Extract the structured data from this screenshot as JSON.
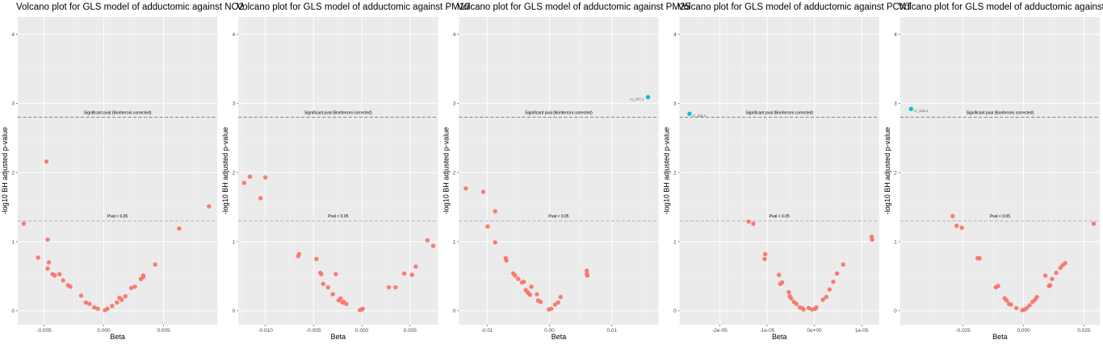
{
  "chart_data": [
    {
      "type": "scatter",
      "title": "Volcano plot for GLS model of adductomic against NO2",
      "xlabel": "Beta",
      "ylabel": "-log10 BH adjusted p-value",
      "xlim": [
        -0.0072,
        0.0095
      ],
      "ylim": [
        -0.2,
        4.25
      ],
      "xticks": [
        {
          "v": -0.005,
          "label": "-0.005"
        },
        {
          "v": 0,
          "label": "0.000"
        },
        {
          "v": 0.005,
          "label": "0.005"
        }
      ],
      "yticks": [
        {
          "v": 0,
          "label": "0"
        },
        {
          "v": 1,
          "label": "1"
        },
        {
          "v": 2,
          "label": "2"
        },
        {
          "v": 3,
          "label": "3"
        },
        {
          "v": 4,
          "label": "4"
        }
      ],
      "reference_lines": [
        {
          "y": 2.8,
          "label": "Significant pval (Bonferroni corrected)"
        },
        {
          "y": 1.3,
          "label": "Pval < 0.05"
        }
      ],
      "colors": {
        "non_significant": "#F8766D",
        "significant": "#00BFC4"
      },
      "points": [
        {
          "x": -0.0067,
          "y": 1.26
        },
        {
          "x": -0.0055,
          "y": 0.77
        },
        {
          "x": -0.0048,
          "y": 2.16
        },
        {
          "x": -0.0047,
          "y": 1.03
        },
        {
          "x": -0.0046,
          "y": 0.7
        },
        {
          "x": -0.0047,
          "y": 0.61
        },
        {
          "x": -0.0043,
          "y": 0.53
        },
        {
          "x": -0.0041,
          "y": 0.51
        },
        {
          "x": -0.0037,
          "y": 0.53
        },
        {
          "x": -0.0034,
          "y": 0.44
        },
        {
          "x": -0.003,
          "y": 0.37
        },
        {
          "x": -0.0028,
          "y": 0.35
        },
        {
          "x": -0.0019,
          "y": 0.22
        },
        {
          "x": -0.0015,
          "y": 0.12
        },
        {
          "x": -0.0012,
          "y": 0.1
        },
        {
          "x": -0.0008,
          "y": 0.05
        },
        {
          "x": -0.0005,
          "y": 0.03
        },
        {
          "x": 0.0001,
          "y": 0.01
        },
        {
          "x": 0.0003,
          "y": 0.03
        },
        {
          "x": 0.0007,
          "y": 0.07
        },
        {
          "x": 0.0011,
          "y": 0.12
        },
        {
          "x": 0.0013,
          "y": 0.19
        },
        {
          "x": 0.0015,
          "y": 0.16
        },
        {
          "x": 0.0018,
          "y": 0.21
        },
        {
          "x": 0.0023,
          "y": 0.33
        },
        {
          "x": 0.0026,
          "y": 0.35
        },
        {
          "x": 0.0031,
          "y": 0.46
        },
        {
          "x": 0.0033,
          "y": 0.51
        },
        {
          "x": 0.0033,
          "y": 0.49
        },
        {
          "x": 0.0043,
          "y": 0.67
        },
        {
          "x": 0.0063,
          "y": 1.19
        },
        {
          "x": 0.0088,
          "y": 1.51
        }
      ]
    },
    {
      "type": "scatter",
      "title": "Volcano plot for GLS model of adductomic against PM10",
      "xlabel": "Beta",
      "ylabel": "-log10 BH adjusted p-value",
      "xlim": [
        -0.0128,
        0.0079
      ],
      "ylim": [
        -0.2,
        4.25
      ],
      "xticks": [
        {
          "v": -0.01,
          "label": "-0.010"
        },
        {
          "v": -0.005,
          "label": "-0.005"
        },
        {
          "v": 0,
          "label": "0.000"
        },
        {
          "v": 0.005,
          "label": "0.005"
        }
      ],
      "yticks": [
        {
          "v": 0,
          "label": "0"
        },
        {
          "v": 1,
          "label": "1"
        },
        {
          "v": 2,
          "label": "2"
        },
        {
          "v": 3,
          "label": "3"
        },
        {
          "v": 4,
          "label": "4"
        }
      ],
      "reference_lines": [
        {
          "y": 2.8,
          "label": "Significant pval (Bonferroni corrected)"
        },
        {
          "y": 1.3,
          "label": "Pval < 0.05"
        }
      ],
      "colors": {
        "non_significant": "#F8766D",
        "significant": "#00BFC4"
      },
      "points": [
        {
          "x": -0.0122,
          "y": 1.85
        },
        {
          "x": -0.0116,
          "y": 1.94
        },
        {
          "x": -0.0105,
          "y": 1.63
        },
        {
          "x": -0.01,
          "y": 1.93
        },
        {
          "x": -0.0066,
          "y": 0.79
        },
        {
          "x": -0.0065,
          "y": 0.82
        },
        {
          "x": -0.0047,
          "y": 0.75
        },
        {
          "x": -0.0043,
          "y": 0.55
        },
        {
          "x": -0.0042,
          "y": 0.53
        },
        {
          "x": -0.004,
          "y": 0.39
        },
        {
          "x": -0.0035,
          "y": 0.34
        },
        {
          "x": -0.003,
          "y": 0.24
        },
        {
          "x": -0.0027,
          "y": 0.53
        },
        {
          "x": -0.0024,
          "y": 0.15
        },
        {
          "x": -0.0022,
          "y": 0.18
        },
        {
          "x": -0.002,
          "y": 0.12
        },
        {
          "x": -0.0019,
          "y": 0.13
        },
        {
          "x": -0.0016,
          "y": 0.1
        },
        {
          "x": -0.0002,
          "y": 0.01
        },
        {
          "x": 0.0,
          "y": 0.02
        },
        {
          "x": 0.0001,
          "y": 0.03
        },
        {
          "x": 0.0028,
          "y": 0.34
        },
        {
          "x": 0.0035,
          "y": 0.34
        },
        {
          "x": 0.0044,
          "y": 0.54
        },
        {
          "x": 0.0052,
          "y": 0.52
        },
        {
          "x": 0.0056,
          "y": 0.64
        },
        {
          "x": 0.0068,
          "y": 1.02
        },
        {
          "x": 0.0074,
          "y": 0.94
        }
      ]
    },
    {
      "type": "scatter",
      "title": "Volcano plot for GLS model of adductomic against PM25",
      "xlabel": "Beta",
      "ylabel": "-log10 BH adjusted p-value",
      "xlim": [
        -0.0145,
        0.0175
      ],
      "ylim": [
        -0.2,
        4.25
      ],
      "xticks": [
        {
          "v": -0.01,
          "label": "-0.01"
        },
        {
          "v": 0,
          "label": "0.00"
        },
        {
          "v": 0.01,
          "label": "0.01"
        }
      ],
      "yticks": [
        {
          "v": 0,
          "label": "0"
        },
        {
          "v": 1,
          "label": "1"
        },
        {
          "v": 2,
          "label": "2"
        },
        {
          "v": 3,
          "label": "3"
        },
        {
          "v": 4,
          "label": "4"
        }
      ],
      "reference_lines": [
        {
          "y": 2.8,
          "label": "Significant pval (Bonferroni corrected)"
        },
        {
          "y": 1.3,
          "label": "Pval < 0.05"
        }
      ],
      "colors": {
        "non_significant": "#F8766D",
        "significant": "#00BFC4"
      },
      "points": [
        {
          "x": -0.0134,
          "y": 1.77
        },
        {
          "x": -0.0106,
          "y": 1.72
        },
        {
          "x": -0.0099,
          "y": 1.22
        },
        {
          "x": -0.0087,
          "y": 1.44
        },
        {
          "x": -0.0087,
          "y": 0.99
        },
        {
          "x": -0.007,
          "y": 0.76
        },
        {
          "x": -0.0069,
          "y": 0.73
        },
        {
          "x": -0.0058,
          "y": 0.54
        },
        {
          "x": -0.0055,
          "y": 0.51
        },
        {
          "x": -0.005,
          "y": 0.46
        },
        {
          "x": -0.0044,
          "y": 0.41
        },
        {
          "x": -0.0041,
          "y": 0.42
        },
        {
          "x": -0.0038,
          "y": 0.3
        },
        {
          "x": -0.0035,
          "y": 0.27
        },
        {
          "x": -0.0033,
          "y": 0.25
        },
        {
          "x": -0.0031,
          "y": 0.23
        },
        {
          "x": -0.0029,
          "y": 0.35
        },
        {
          "x": -0.002,
          "y": 0.24
        },
        {
          "x": -0.0018,
          "y": 0.15
        },
        {
          "x": -0.0014,
          "y": 0.13
        },
        {
          "x": -0.0001,
          "y": 0.02
        },
        {
          "x": 0.0003,
          "y": 0.03
        },
        {
          "x": 0.0009,
          "y": 0.09
        },
        {
          "x": 0.0014,
          "y": 0.12
        },
        {
          "x": 0.0018,
          "y": 0.2
        },
        {
          "x": 0.006,
          "y": 0.53
        },
        {
          "x": 0.006,
          "y": 0.58
        },
        {
          "x": 0.0061,
          "y": 0.51
        },
        {
          "x": 0.0158,
          "y": 3.09,
          "significant": true,
          "label": "ci_107.1"
        }
      ]
    },
    {
      "type": "scatter",
      "title": "Volcano plot for GLS model of adductomic against PCNT",
      "xlabel": "Beta",
      "ylabel": "-log10 BH adjusted p-value",
      "xlim": [
        -2.85e-05,
        1.37e-05
      ],
      "ylim": [
        -0.2,
        4.25
      ],
      "xticks": [
        {
          "v": -2e-05,
          "label": "-2e-05"
        },
        {
          "v": -1e-05,
          "label": "-1e-05"
        },
        {
          "v": 0,
          "label": "0e+00"
        },
        {
          "v": 1e-05,
          "label": "1e-05"
        }
      ],
      "yticks": [
        {
          "v": 0,
          "label": "0"
        },
        {
          "v": 1,
          "label": "1"
        },
        {
          "v": 2,
          "label": "2"
        },
        {
          "v": 3,
          "label": "3"
        },
        {
          "v": 4,
          "label": "4"
        }
      ],
      "reference_lines": [
        {
          "y": 2.8,
          "label": "Significant pval (Bonferroni corrected)"
        },
        {
          "y": 1.3,
          "label": "Pval < 0.05"
        }
      ],
      "colors": {
        "non_significant": "#F8766D",
        "significant": "#00BFC4"
      },
      "points": [
        {
          "x": -2.64e-05,
          "y": 2.85,
          "significant": true,
          "label": "ci_111.1"
        },
        {
          "x": -1.39e-05,
          "y": 1.29
        },
        {
          "x": -1.29e-05,
          "y": 1.26
        },
        {
          "x": -1.04e-05,
          "y": 0.82
        },
        {
          "x": -1.05e-05,
          "y": 0.75
        },
        {
          "x": -7.5e-06,
          "y": 0.52
        },
        {
          "x": -7.2e-06,
          "y": 0.39
        },
        {
          "x": -6.8e-06,
          "y": 0.41
        },
        {
          "x": -5.4e-06,
          "y": 0.27
        },
        {
          "x": -5.2e-06,
          "y": 0.21
        },
        {
          "x": -4.9e-06,
          "y": 0.18
        },
        {
          "x": -4.3e-06,
          "y": 0.13
        },
        {
          "x": -3.8e-06,
          "y": 0.1
        },
        {
          "x": -3.1e-06,
          "y": 0.05
        },
        {
          "x": -2.6e-06,
          "y": 0.04
        },
        {
          "x": -2.3e-06,
          "y": 0.02
        },
        {
          "x": -1.2e-06,
          "y": 0.04
        },
        {
          "x": -5e-07,
          "y": 0.02
        },
        {
          "x": 2e-07,
          "y": 0.03
        },
        {
          "x": 4e-07,
          "y": 0.05
        },
        {
          "x": 1.8e-06,
          "y": 0.16
        },
        {
          "x": 2.5e-06,
          "y": 0.2
        },
        {
          "x": 3.2e-06,
          "y": 0.31
        },
        {
          "x": 4e-06,
          "y": 0.42
        },
        {
          "x": 4.8e-06,
          "y": 0.54
        },
        {
          "x": 6.1e-06,
          "y": 0.67
        },
        {
          "x": 1.21e-05,
          "y": 1.07
        },
        {
          "x": 1.22e-05,
          "y": 1.03
        }
      ]
    },
    {
      "type": "scatter",
      "title": "Volcano plot for GLS model of adductomic against CBLK",
      "xlabel": "Beta",
      "ylabel": "-log10 BH adjusted p-value",
      "xlim": [
        -0.051,
        0.0315
      ],
      "ylim": [
        -0.2,
        4.25
      ],
      "xticks": [
        {
          "v": -0.025,
          "label": "-0.025"
        },
        {
          "v": 0,
          "label": "0.000"
        },
        {
          "v": 0.025,
          "label": "0.025"
        }
      ],
      "yticks": [
        {
          "v": 0,
          "label": "0"
        },
        {
          "v": 1,
          "label": "1"
        },
        {
          "v": 2,
          "label": "2"
        },
        {
          "v": 3,
          "label": "3"
        },
        {
          "v": 4,
          "label": "4"
        }
      ],
      "reference_lines": [
        {
          "y": 2.8,
          "label": "Significant pval (Bonferroni corrected)"
        },
        {
          "y": 1.3,
          "label": "Pval < 0.05"
        }
      ],
      "colors": {
        "non_significant": "#F8766D",
        "significant": "#00BFC4"
      },
      "points": [
        {
          "x": -0.0465,
          "y": 2.92,
          "significant": true,
          "label": "ci_143.1"
        },
        {
          "x": -0.0293,
          "y": 1.37
        },
        {
          "x": -0.0277,
          "y": 1.23
        },
        {
          "x": -0.0255,
          "y": 1.2
        },
        {
          "x": -0.019,
          "y": 0.76
        },
        {
          "x": -0.0182,
          "y": 0.76
        },
        {
          "x": -0.0115,
          "y": 0.34
        },
        {
          "x": -0.0105,
          "y": 0.36
        },
        {
          "x": -0.0078,
          "y": 0.18
        },
        {
          "x": -0.007,
          "y": 0.15
        },
        {
          "x": -0.006,
          "y": 0.1
        },
        {
          "x": -0.0052,
          "y": 0.09
        },
        {
          "x": -0.003,
          "y": 0.04
        },
        {
          "x": -0.0005,
          "y": 0.01
        },
        {
          "x": 0.0005,
          "y": 0.02
        },
        {
          "x": 0.0013,
          "y": 0.04
        },
        {
          "x": 0.0025,
          "y": 0.08
        },
        {
          "x": 0.0037,
          "y": 0.13
        },
        {
          "x": 0.0047,
          "y": 0.16
        },
        {
          "x": 0.0055,
          "y": 0.2
        },
        {
          "x": 0.009,
          "y": 0.51
        },
        {
          "x": 0.0105,
          "y": 0.36
        },
        {
          "x": 0.011,
          "y": 0.37
        },
        {
          "x": 0.0118,
          "y": 0.46
        },
        {
          "x": 0.0135,
          "y": 0.55
        },
        {
          "x": 0.0152,
          "y": 0.62
        },
        {
          "x": 0.0162,
          "y": 0.66
        },
        {
          "x": 0.0172,
          "y": 0.69
        },
        {
          "x": 0.029,
          "y": 1.26
        }
      ]
    }
  ]
}
